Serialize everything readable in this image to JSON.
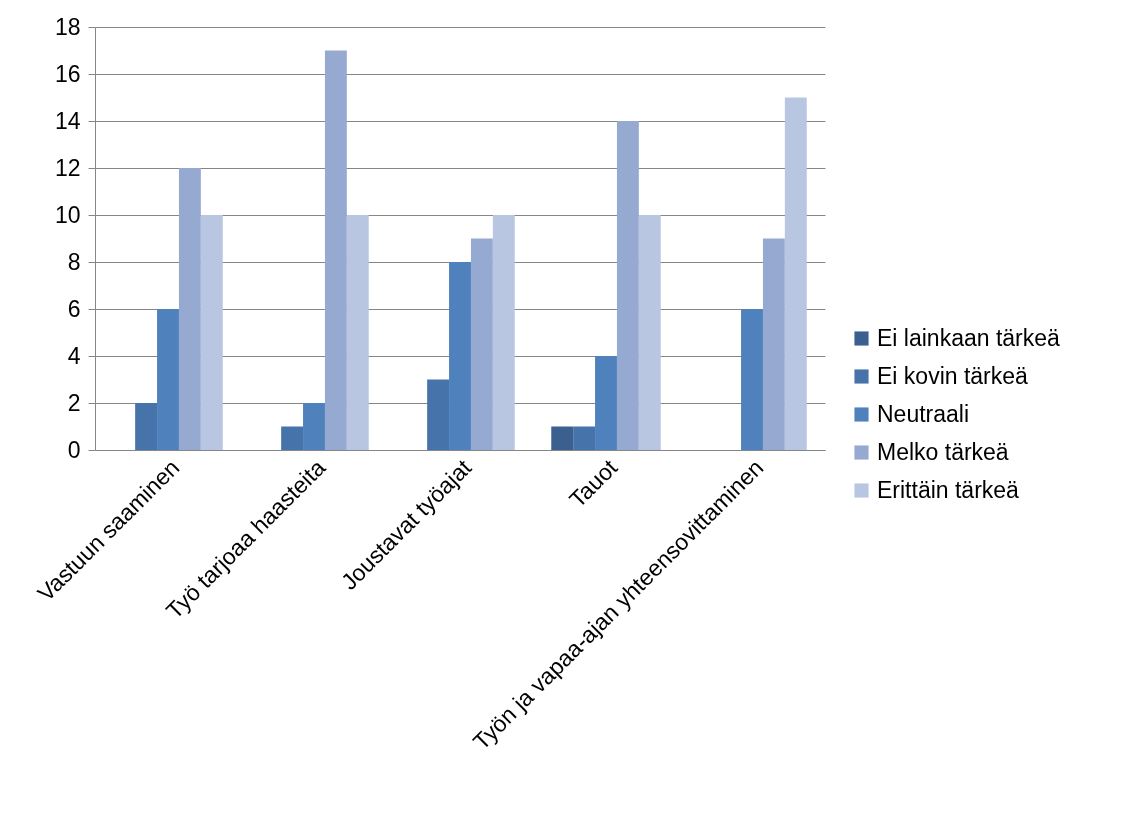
{
  "chart_data": {
    "type": "bar",
    "categories": [
      "Vastuun saaminen",
      "Työ tarjoaa haasteita",
      "Joustavat työajat",
      "Tauot",
      "Työn ja vapaa-ajan yhteensovittaminen"
    ],
    "series": [
      {
        "name": "Ei lainkaan tärkeä",
        "color": "#3b6090",
        "values": [
          0,
          0,
          0,
          1,
          0
        ]
      },
      {
        "name": "Ei kovin tärkeä",
        "color": "#4674aa",
        "values": [
          2,
          1,
          3,
          1,
          0
        ]
      },
      {
        "name": "Neutraali",
        "color": "#4f81bd",
        "values": [
          6,
          2,
          8,
          4,
          6
        ]
      },
      {
        "name": "Melko tärkeä",
        "color": "#95a9d1",
        "values": [
          12,
          17,
          9,
          14,
          9
        ]
      },
      {
        "name": "Erittäin tärkeä",
        "color": "#b9c6e1",
        "values": [
          10,
          10,
          10,
          10,
          15
        ]
      }
    ],
    "ylim": [
      0,
      18
    ],
    "yticks": [
      0,
      2,
      4,
      6,
      8,
      10,
      12,
      14,
      16,
      18
    ],
    "grid": "y",
    "legend": "right"
  }
}
